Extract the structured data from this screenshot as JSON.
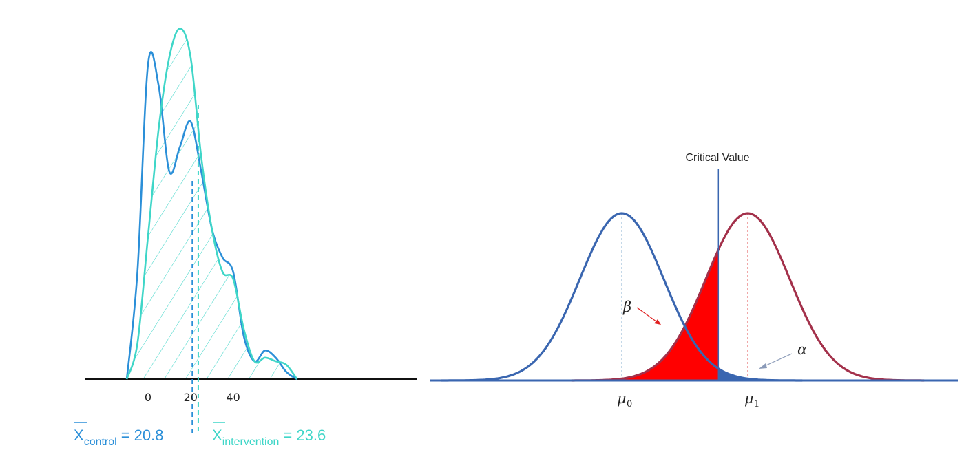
{
  "chart_data": [
    {
      "type": "area",
      "description_role": "left density plot",
      "x_ticks": [
        "0",
        "20",
        "40"
      ],
      "series": [
        {
          "label": "control",
          "mean": "20.8",
          "mean_text": "= 20.8",
          "color": "#2b8fd8",
          "x": [
            -10,
            -5,
            0,
            5,
            10,
            15,
            20,
            25,
            30,
            35,
            40,
            45,
            50,
            55,
            60,
            65,
            70
          ],
          "y": [
            0.0,
            0.03,
            0.088,
            0.082,
            0.058,
            0.065,
            0.072,
            0.058,
            0.042,
            0.034,
            0.03,
            0.012,
            0.005,
            0.008,
            0.006,
            0.002,
            0.0
          ]
        },
        {
          "label": "intervention",
          "mean": "23.6",
          "mean_text": "= 23.6",
          "color": "#3fd6c8",
          "x": [
            -10,
            -5,
            0,
            5,
            10,
            15,
            20,
            25,
            30,
            35,
            40,
            45,
            50,
            55,
            60,
            65,
            70
          ],
          "y": [
            0.0,
            0.01,
            0.04,
            0.07,
            0.09,
            0.098,
            0.09,
            0.062,
            0.042,
            0.03,
            0.028,
            0.014,
            0.005,
            0.006,
            0.005,
            0.004,
            0.0
          ]
        }
      ]
    },
    {
      "type": "line",
      "description_role": "hypothesis test distributions",
      "critical_value_label": "Critical Value",
      "series": [
        {
          "label": "H0",
          "mean_label": "μ",
          "mean_sub": "0",
          "color": "#3a66b0"
        },
        {
          "label": "H1",
          "mean_label": "μ",
          "mean_sub": "1",
          "color": "#a3304a"
        }
      ],
      "mu0": 0,
      "mu1": 3,
      "sd": 1,
      "critical_value": 2.3,
      "shaded_regions": [
        {
          "name": "β",
          "color": "#ff0000",
          "meaning": "area under H1 left of critical value"
        },
        {
          "name": "α",
          "color": "#3a66b0",
          "meaning": "area under H0 right of critical value"
        }
      ]
    }
  ]
}
